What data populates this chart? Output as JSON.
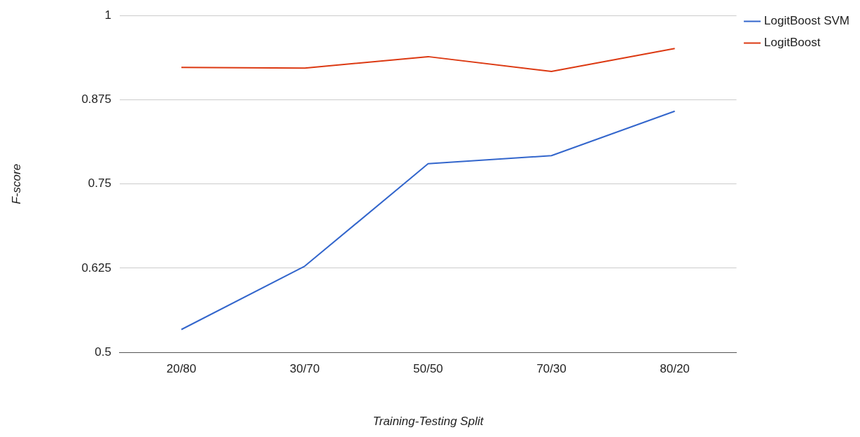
{
  "chart_data": {
    "type": "line",
    "xlabel": "Training-Testing Split",
    "ylabel": "F-score",
    "categories": [
      "20/80",
      "30/70",
      "50/50",
      "70/30",
      "80/20"
    ],
    "series": [
      {
        "name": "LogitBoost SVM",
        "color": "#3366cc",
        "values": [
          0.534,
          0.628,
          0.78,
          0.792,
          0.858
        ]
      },
      {
        "name": "LogitBoost",
        "color": "#dc3912",
        "values": [
          0.923,
          0.922,
          0.939,
          0.917,
          0.951
        ]
      }
    ],
    "ylim": [
      0.5,
      1
    ],
    "yticks": [
      0.5,
      0.625,
      0.75,
      0.875,
      1
    ],
    "grid": "y",
    "legend": "top right",
    "marker": "none",
    "line_style": "solid"
  }
}
